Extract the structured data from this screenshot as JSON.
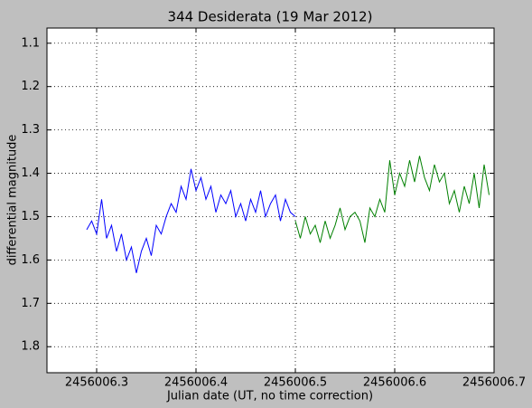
{
  "chart_data": {
    "type": "line",
    "title": "344 Desiderata (19 Mar 2012)",
    "x_label": "Julian date (UT, no time correction)",
    "y_label": "differential magnitude",
    "xlim": [
      2456006.25,
      2456006.7
    ],
    "xticks": [
      2456006.3,
      2456006.4,
      2456006.5,
      2456006.6,
      2456006.7
    ],
    "ylim": [
      1.065,
      1.86
    ],
    "y_inverted": true,
    "yticks": [
      1.1,
      1.2,
      1.3,
      1.4,
      1.5,
      1.6,
      1.7,
      1.8
    ],
    "grid": true,
    "series": [
      {
        "color": "#0000ff",
        "x": [
          2456006.29,
          2456006.295,
          2456006.3,
          2456006.305,
          2456006.31,
          2456006.315,
          2456006.32,
          2456006.325,
          2456006.33,
          2456006.335,
          2456006.34,
          2456006.345,
          2456006.35,
          2456006.355,
          2456006.36,
          2456006.365,
          2456006.37,
          2456006.375,
          2456006.38,
          2456006.385,
          2456006.39,
          2456006.395,
          2456006.4,
          2456006.405,
          2456006.41,
          2456006.415,
          2456006.42,
          2456006.425,
          2456006.43,
          2456006.435,
          2456006.44,
          2456006.445,
          2456006.45,
          2456006.455,
          2456006.46,
          2456006.465,
          2456006.47,
          2456006.475,
          2456006.48,
          2456006.485,
          2456006.49,
          2456006.495,
          2456006.5
        ],
        "values": [
          1.53,
          1.51,
          1.54,
          1.46,
          1.55,
          1.52,
          1.58,
          1.54,
          1.6,
          1.57,
          1.63,
          1.58,
          1.55,
          1.59,
          1.52,
          1.54,
          1.5,
          1.47,
          1.49,
          1.43,
          1.46,
          1.39,
          1.44,
          1.41,
          1.46,
          1.43,
          1.49,
          1.45,
          1.47,
          1.44,
          1.5,
          1.47,
          1.51,
          1.46,
          1.49,
          1.44,
          1.5,
          1.47,
          1.45,
          1.51,
          1.46,
          1.49,
          1.5
        ]
      },
      {
        "color": "#008000",
        "x": [
          2456006.5,
          2456006.505,
          2456006.51,
          2456006.515,
          2456006.52,
          2456006.525,
          2456006.53,
          2456006.535,
          2456006.54,
          2456006.545,
          2456006.55,
          2456006.555,
          2456006.56,
          2456006.565,
          2456006.57,
          2456006.575,
          2456006.58,
          2456006.585,
          2456006.59,
          2456006.595,
          2456006.6,
          2456006.605,
          2456006.61,
          2456006.615,
          2456006.62,
          2456006.625,
          2456006.63,
          2456006.635,
          2456006.64,
          2456006.645,
          2456006.65,
          2456006.655,
          2456006.66,
          2456006.665,
          2456006.67,
          2456006.675,
          2456006.68,
          2456006.685,
          2456006.69,
          2456006.695
        ],
        "values": [
          1.51,
          1.55,
          1.5,
          1.54,
          1.52,
          1.56,
          1.51,
          1.55,
          1.52,
          1.48,
          1.53,
          1.5,
          1.49,
          1.51,
          1.56,
          1.48,
          1.5,
          1.46,
          1.49,
          1.37,
          1.45,
          1.4,
          1.43,
          1.37,
          1.42,
          1.36,
          1.41,
          1.44,
          1.38,
          1.42,
          1.4,
          1.47,
          1.44,
          1.49,
          1.43,
          1.47,
          1.4,
          1.48,
          1.38,
          1.45
        ]
      }
    ]
  }
}
